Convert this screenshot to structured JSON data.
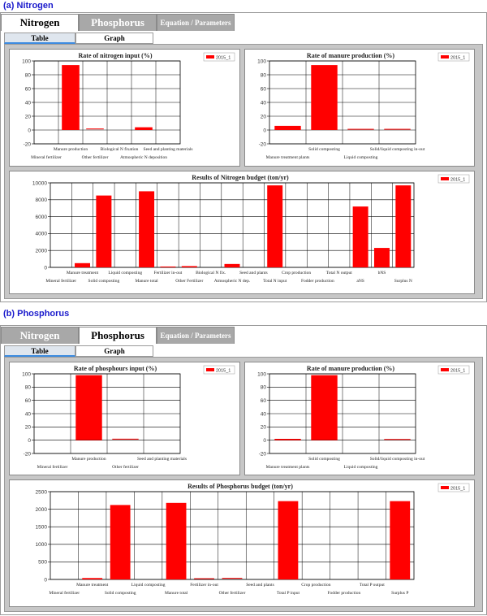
{
  "sections": [
    {
      "label": "(a)  Nitrogen",
      "tabs": [
        {
          "label": "Nitrogen",
          "state": "active"
        },
        {
          "label": "Phosphorus",
          "state": "inactive"
        },
        {
          "label": "Equation / Parameters",
          "state": "inactive"
        }
      ],
      "subtabs": [
        {
          "label": "Table"
        },
        {
          "label": "Graph"
        }
      ]
    },
    {
      "label": "(b)  Phosphorus",
      "tabs": [
        {
          "label": "Nitrogen",
          "state": "inactive"
        },
        {
          "label": "Phosphorus",
          "state": "active"
        },
        {
          "label": "Equation / Parameters",
          "state": "inactive"
        }
      ],
      "subtabs": [
        {
          "label": "Table"
        },
        {
          "label": "Graph"
        }
      ]
    }
  ],
  "colors": {
    "bar": "#ff0000",
    "grid": "#000000",
    "panel_bg": "#c7c7c7"
  },
  "chart_data": [
    {
      "type": "bar",
      "title": "Rate of nitrogen input  (%)",
      "series": [
        {
          "name": "2015_1",
          "values": [
            0,
            94,
            1,
            0,
            4,
            0
          ]
        }
      ],
      "categories": [
        "Mineral fertilizer",
        "Manure production",
        "Other fertilizer",
        "Biological N fixation",
        "Atmospheric N deposition",
        "Seed and planting materials"
      ],
      "ylim": [
        -20,
        100
      ],
      "yticks": [
        -20,
        0,
        20,
        40,
        60,
        80,
        100
      ],
      "grid": true,
      "legend": "top-right"
    },
    {
      "type": "bar",
      "title": "Rate of manure production  (%)",
      "series": [
        {
          "name": "2015_1",
          "values": [
            6,
            94,
            0.5,
            0.5
          ]
        }
      ],
      "categories": [
        "Manure treatment plants",
        "Solid composting",
        "Liquid composting",
        "Solid/liquid composting in-out"
      ],
      "ylim": [
        -20,
        100
      ],
      "yticks": [
        -20,
        0,
        20,
        40,
        60,
        80,
        100
      ],
      "grid": true,
      "legend": "top-right"
    },
    {
      "type": "bar",
      "title": "Results of Nitrogen budget  (ton/yr)",
      "series": [
        {
          "name": "2015_1",
          "values": [
            0,
            500,
            8500,
            0,
            9000,
            100,
            150,
            0,
            400,
            0,
            9700,
            0,
            0,
            0,
            7200,
            2300,
            9700
          ]
        }
      ],
      "categories": [
        "Mineral fertilizer",
        "Manure treatment",
        "Solid composting",
        "Liquid composting",
        "Manure total",
        "Fertilizer in-out",
        "Other Fertilizer",
        "Biological N fix.",
        "Atmospheric N dep.",
        "Seed and plants",
        "Total N input",
        "Crop production",
        "Fodder production",
        "Total N output",
        "aNS",
        "bNS",
        "Surplus N"
      ],
      "ylim": [
        0,
        10000
      ],
      "yticks": [
        0,
        2000,
        4000,
        6000,
        8000,
        10000
      ],
      "grid": true,
      "legend": "top-right"
    },
    {
      "type": "bar",
      "title": "Rate of phosphours input  (%)",
      "series": [
        {
          "name": "2015_1",
          "values": [
            0,
            98,
            1,
            0
          ]
        }
      ],
      "categories": [
        "Mineral fertilizer",
        "Manure production",
        "Other fertilizer",
        "Seed and planting materials"
      ],
      "ylim": [
        -20,
        100
      ],
      "yticks": [
        -20,
        0,
        20,
        40,
        60,
        80,
        100
      ],
      "grid": true,
      "legend": "top-right"
    },
    {
      "type": "bar",
      "title": "Rate of manure production  (%)",
      "series": [
        {
          "name": "2015_1",
          "values": [
            2,
            98,
            0,
            0.5
          ]
        }
      ],
      "categories": [
        "Manure treatment plants",
        "Solid composting",
        "Liquid composting",
        "Solid/liquid composting in-out"
      ],
      "ylim": [
        -20,
        100
      ],
      "yticks": [
        -20,
        0,
        20,
        40,
        60,
        80,
        100
      ],
      "grid": true,
      "legend": "top-right"
    },
    {
      "type": "bar",
      "title": "Results of Phosphorus budget  (ton/yr)",
      "series": [
        {
          "name": "2015_1",
          "values": [
            0,
            40,
            2120,
            0,
            2180,
            10,
            20,
            0,
            2230,
            0,
            0,
            0,
            2230
          ]
        }
      ],
      "categories": [
        "Mineral fertilizer",
        "Manure treatment",
        "Solid composting",
        "Liquid composting",
        "Manure total",
        "Fertilizer in-out",
        "Other fertilizer",
        "Seed and plants",
        "Total P input",
        "Crop production",
        "Fodder production",
        "Total P output",
        "Surplus P"
      ],
      "ylim": [
        0,
        2500
      ],
      "yticks": [
        0,
        500,
        1000,
        1500,
        2000,
        2500
      ],
      "grid": true,
      "legend": "top-right"
    }
  ]
}
